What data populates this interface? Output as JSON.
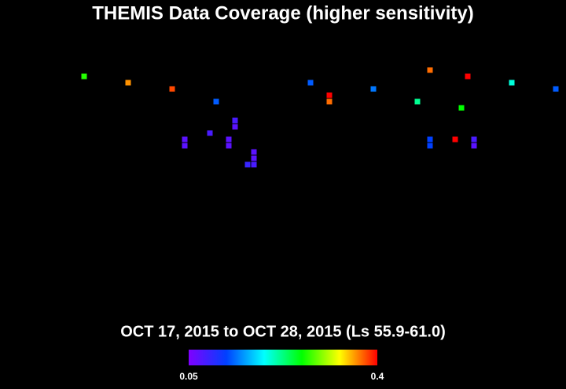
{
  "chart_data": {
    "type": "scatter",
    "title": "THEMIS Data Coverage (higher sensitivity)",
    "subtitle": "OCT 17, 2015 to OCT 28, 2015 (Ls 55.9-61.0)",
    "xlim": [
      0,
      360
    ],
    "ylim": [
      -90,
      90
    ],
    "x": [
      53.5,
      81.5,
      109.5,
      137.5,
      149.5,
      149.5,
      133.5,
      117.5,
      117.5,
      145.5,
      145.5,
      161.5,
      161.5,
      157.5,
      161.5,
      197.5,
      209.5,
      209.5,
      237.5,
      273.5,
      297.5,
      325.5,
      353.5,
      265.5,
      293.5,
      273.5,
      273.5,
      289.5,
      301.5,
      301.5
    ],
    "y": [
      61.5,
      57.5,
      53.5,
      45.5,
      33.5,
      29.5,
      25.5,
      21.5,
      17.5,
      21.5,
      17.5,
      13.5,
      9.5,
      5.5,
      5.5,
      57.5,
      49.5,
      45.5,
      53.5,
      65.5,
      61.5,
      57.5,
      53.5,
      45.5,
      41.5,
      21.5,
      17.5,
      21.5,
      21.5,
      17.5
    ],
    "values": [
      0.27,
      0.36,
      0.38,
      0.13,
      0.08,
      0.07,
      0.08,
      0.07,
      0.07,
      0.07,
      0.07,
      0.07,
      0.07,
      0.09,
      0.08,
      0.13,
      0.4,
      0.37,
      0.14,
      0.37,
      0.4,
      0.2,
      0.13,
      0.22,
      0.26,
      0.12,
      0.12,
      0.4,
      0.08,
      0.07
    ],
    "clim": [
      0.05,
      0.4
    ],
    "cticks": [
      0.05,
      0.4
    ],
    "colormap": [
      "#8000ff",
      "#0040ff",
      "#00ffff",
      "#00ff00",
      "#ffff00",
      "#ff0000"
    ]
  }
}
